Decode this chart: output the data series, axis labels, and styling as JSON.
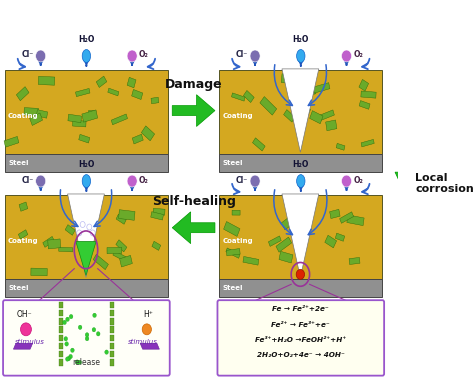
{
  "bg_color": "#ffffff",
  "coating_color": "#D4A820",
  "steel_color": "#909090",
  "graphene_color": "#6aaa2a",
  "graphene_edge": "#2a6a0a",
  "cl_color": "#7b5ea7",
  "h2o_color": "#44aaee",
  "o2_color": "#c060c0",
  "arrow_green": "#22bb22",
  "damage_label": "Damage",
  "self_healing_label": "Self-healing",
  "local_corrosion_label": "Local\ncorrosion",
  "formula_lines": [
    "Fe → Fe²⁺+2e⁻",
    "Fe²⁺ → Fe³⁺+e⁻",
    "Fe³⁺+H₂O →FeOH²⁺+H⁺",
    "2H₂O+O₂+4e⁻ → 4OH⁻"
  ]
}
